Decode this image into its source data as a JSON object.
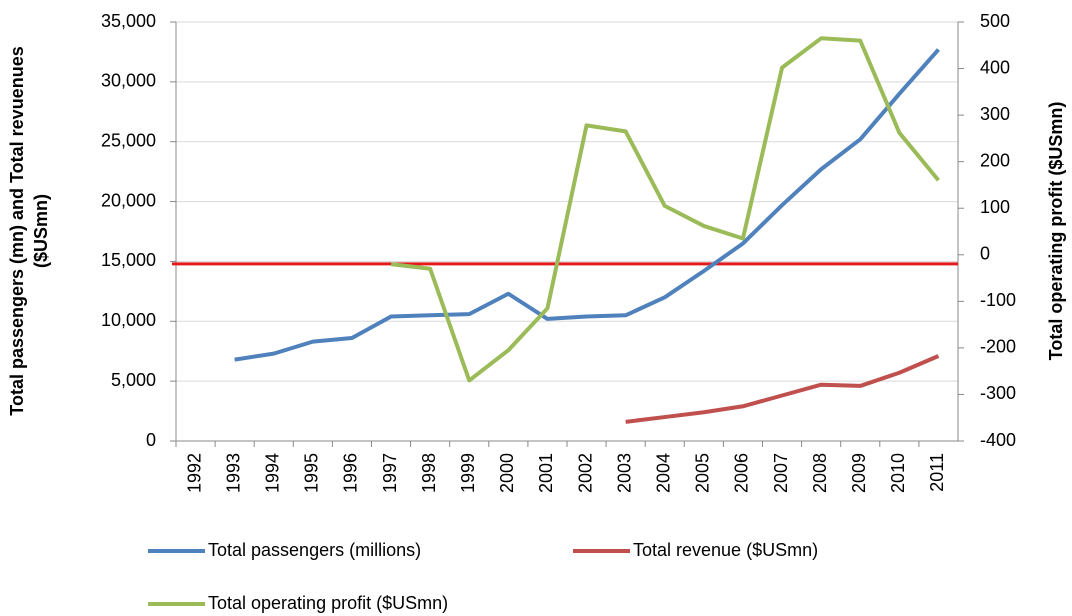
{
  "chart_data": {
    "type": "line",
    "categories": [
      "1992",
      "1993",
      "1994",
      "1995",
      "1996",
      "1997",
      "1998",
      "1999",
      "2000",
      "2001",
      "2002",
      "2003",
      "2004",
      "2005",
      "2006",
      "2007",
      "2008",
      "2009",
      "2010",
      "2011"
    ],
    "ylabel": [
      "Total passengers (mn) and Total revuenues",
      "($USmn)"
    ],
    "y2label": "Total operating profit ($USmn)",
    "ylim": [
      0,
      35000
    ],
    "yticks": [
      0,
      {
        "value": 5000,
        "label": "5,000"
      },
      {
        "value": 10000,
        "label": "10,000"
      },
      {
        "value": 15000,
        "label": "15,000"
      },
      {
        "value": 20000,
        "label": "20,000"
      },
      {
        "value": 25000,
        "label": "25,000"
      },
      {
        "value": 30000,
        "label": "30,000"
      },
      {
        "value": 35000,
        "label": "35,000"
      }
    ],
    "y2lim": [
      -400,
      500
    ],
    "y2ticks": [
      -400,
      -300,
      -200,
      -100,
      0,
      100,
      200,
      300,
      400,
      500
    ],
    "grid": true,
    "legend": "bottom",
    "reference_line": {
      "value": 14800,
      "color": "#e31a1c"
    },
    "series": [
      {
        "name": "Total passengers (millions)",
        "color": "#4f81bd",
        "values": [
          null,
          6800,
          7300,
          8300,
          8600,
          10400,
          10500,
          10600,
          12300,
          10200,
          10400,
          10500,
          12000,
          14200,
          16500,
          19700,
          22700,
          25200,
          29000,
          32700
        ]
      },
      {
        "name": "Total revenue ($USmn)",
        "color": "#c0504d",
        "values": [
          null,
          null,
          null,
          null,
          null,
          null,
          null,
          null,
          null,
          null,
          null,
          1600,
          2000,
          2400,
          2900,
          3800,
          4700,
          4600,
          5700,
          7100
        ]
      },
      {
        "name": "Total operating profit ($USmn)",
        "color": "#9bbb59",
        "axis": "y2",
        "values": [
          null,
          null,
          null,
          null,
          null,
          -20,
          -30,
          -270,
          -205,
          -115,
          278,
          265,
          105,
          62,
          35,
          402,
          465,
          460,
          262,
          160
        ]
      }
    ]
  }
}
